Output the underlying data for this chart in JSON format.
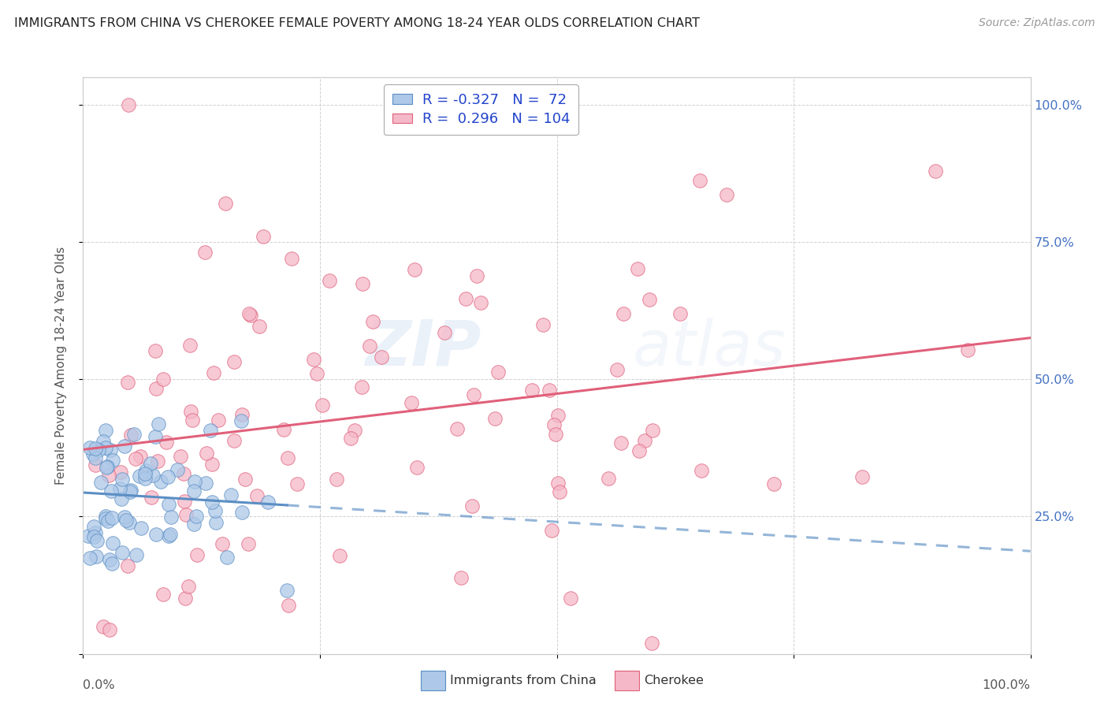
{
  "title": "IMMIGRANTS FROM CHINA VS CHEROKEE FEMALE POVERTY AMONG 18-24 YEAR OLDS CORRELATION CHART",
  "source": "Source: ZipAtlas.com",
  "ylabel": "Female Poverty Among 18-24 Year Olds",
  "china_color": "#adc8e8",
  "china_color_dark": "#5b8ec4",
  "cherokee_color": "#f5b8c8",
  "cherokee_color_dark": "#e0607a",
  "china_R": -0.327,
  "china_N": 72,
  "cherokee_R": 0.296,
  "cherokee_N": 104,
  "legend_label_china": "Immigrants from China",
  "legend_label_cherokee": "Cherokee",
  "watermark_zip": "ZIP",
  "watermark_atlas": "atlas",
  "background_color": "#ffffff",
  "grid_color": "#cccccc",
  "title_color": "#222222",
  "axis_label_color": "#555555",
  "right_tick_color": "#4472c4",
  "seed": 99
}
